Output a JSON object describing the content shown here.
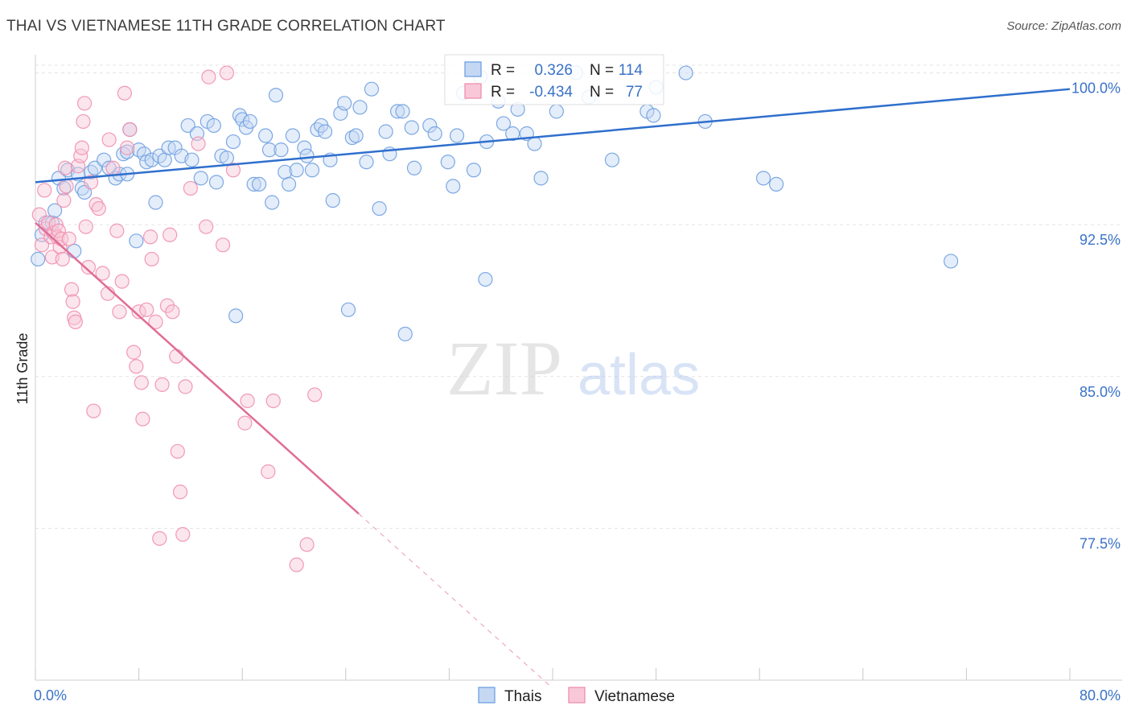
{
  "title": "THAI VS VIETNAMESE 11TH GRADE CORRELATION CHART",
  "source": "Source: ZipAtlas.com",
  "watermark": {
    "zip": "ZIP",
    "atlas": "atlas"
  },
  "colors": {
    "thai": "#6fa0e0",
    "thai_fill": "#c4d8f4",
    "thai_line": "#2f6fcd",
    "viet": "#ef8fae",
    "viet_fill": "#f8c8d8",
    "viet_line": "#e06d97",
    "axis_text": "#3a72c8",
    "grid": "#e3e3e3"
  },
  "stats": {
    "r_label": "R =",
    "n_label": "N =",
    "thai": {
      "r": "0.326",
      "n": "114"
    },
    "viet": {
      "r": "-0.434",
      "n": "77"
    }
  },
  "chart_data": {
    "type": "scatter",
    "title": "THAI VS VIETNAMESE 11TH GRADE CORRELATION CHART",
    "xlabel": "",
    "ylabel": "11th Grade",
    "xlim": [
      0,
      80
    ],
    "ylim": [
      70,
      100.5
    ],
    "x_tick_labels": {
      "min": "0.0%",
      "max": "80.0%"
    },
    "x_ticks": [
      0,
      8,
      16,
      24,
      32,
      40,
      48,
      56,
      64,
      72,
      80
    ],
    "y_ticks": [
      {
        "v": 100,
        "label": "100.0%"
      },
      {
        "v": 92.5,
        "label": "92.5%"
      },
      {
        "v": 85,
        "label": "85.0%"
      },
      {
        "v": 77.5,
        "label": "77.5%"
      }
    ],
    "legend": [
      "Thais",
      "Vietnamese"
    ],
    "series": [
      {
        "name": "Thais",
        "trend": {
          "x0": 0,
          "y0": 94.6,
          "x1": 80,
          "y1": 99.2,
          "solid_to": 80
        },
        "points": [
          [
            0.2,
            90.8
          ],
          [
            0.5,
            92.0
          ],
          [
            0.8,
            92.6
          ],
          [
            1.3,
            92.6
          ],
          [
            1.5,
            93.2
          ],
          [
            1.8,
            94.8
          ],
          [
            2.2,
            94.3
          ],
          [
            2.5,
            95.2
          ],
          [
            3.0,
            91.2
          ],
          [
            3.3,
            95.0
          ],
          [
            3.6,
            94.3
          ],
          [
            3.8,
            94.1
          ],
          [
            4.3,
            95.1
          ],
          [
            4.6,
            95.3
          ],
          [
            5.3,
            95.7
          ],
          [
            5.7,
            95.3
          ],
          [
            6.2,
            94.8
          ],
          [
            6.5,
            95.0
          ],
          [
            6.8,
            96.0
          ],
          [
            7.1,
            96.1
          ],
          [
            7.1,
            95.0
          ],
          [
            7.3,
            97.2
          ],
          [
            7.8,
            91.7
          ],
          [
            8.0,
            96.2
          ],
          [
            8.4,
            96.0
          ],
          [
            8.6,
            95.6
          ],
          [
            9.0,
            95.7
          ],
          [
            9.3,
            93.6
          ],
          [
            9.6,
            95.9
          ],
          [
            10.0,
            95.7
          ],
          [
            10.3,
            96.3
          ],
          [
            10.8,
            96.3
          ],
          [
            11.3,
            95.9
          ],
          [
            11.8,
            97.4
          ],
          [
            12.1,
            95.7
          ],
          [
            12.5,
            97.0
          ],
          [
            12.8,
            94.8
          ],
          [
            13.3,
            97.6
          ],
          [
            13.8,
            97.4
          ],
          [
            14.0,
            94.6
          ],
          [
            14.4,
            95.9
          ],
          [
            14.8,
            95.8
          ],
          [
            15.3,
            96.6
          ],
          [
            15.5,
            88.0
          ],
          [
            15.8,
            97.9
          ],
          [
            16.0,
            97.7
          ],
          [
            16.3,
            97.3
          ],
          [
            16.6,
            97.6
          ],
          [
            16.9,
            94.5
          ],
          [
            17.3,
            94.5
          ],
          [
            17.8,
            96.9
          ],
          [
            18.1,
            96.2
          ],
          [
            18.3,
            93.6
          ],
          [
            18.6,
            98.9
          ],
          [
            19.0,
            96.2
          ],
          [
            19.3,
            95.1
          ],
          [
            19.6,
            94.5
          ],
          [
            19.9,
            96.9
          ],
          [
            20.2,
            95.2
          ],
          [
            20.8,
            96.3
          ],
          [
            21.0,
            95.9
          ],
          [
            21.4,
            95.2
          ],
          [
            21.8,
            97.2
          ],
          [
            22.1,
            97.4
          ],
          [
            22.4,
            97.1
          ],
          [
            22.8,
            95.7
          ],
          [
            23.0,
            93.7
          ],
          [
            23.6,
            98.0
          ],
          [
            23.9,
            98.5
          ],
          [
            24.2,
            88.3
          ],
          [
            24.5,
            96.8
          ],
          [
            24.8,
            96.9
          ],
          [
            25.1,
            98.3
          ],
          [
            25.6,
            95.6
          ],
          [
            26.0,
            99.2
          ],
          [
            26.6,
            93.3
          ],
          [
            27.1,
            97.1
          ],
          [
            27.4,
            96.0
          ],
          [
            28.0,
            98.1
          ],
          [
            28.4,
            98.1
          ],
          [
            28.6,
            87.1
          ],
          [
            29.1,
            97.3
          ],
          [
            29.3,
            95.3
          ],
          [
            30.5,
            97.4
          ],
          [
            30.9,
            97.0
          ],
          [
            31.9,
            95.6
          ],
          [
            32.3,
            94.4
          ],
          [
            32.6,
            96.9
          ],
          [
            33.1,
            99.0
          ],
          [
            33.9,
            95.2
          ],
          [
            34.4,
            99.8
          ],
          [
            34.8,
            89.8
          ],
          [
            34.9,
            96.6
          ],
          [
            35.8,
            98.6
          ],
          [
            36.2,
            97.5
          ],
          [
            36.9,
            97.0
          ],
          [
            37.3,
            98.2
          ],
          [
            38.0,
            97.0
          ],
          [
            38.6,
            96.5
          ],
          [
            39.1,
            94.8
          ],
          [
            40.3,
            98.1
          ],
          [
            41.8,
            100.0
          ],
          [
            42.8,
            98.8
          ],
          [
            44.6,
            95.7
          ],
          [
            47.3,
            98.1
          ],
          [
            47.8,
            97.9
          ],
          [
            48.0,
            99.3
          ],
          [
            50.3,
            100.0
          ],
          [
            51.8,
            97.6
          ],
          [
            56.3,
            94.8
          ],
          [
            57.3,
            94.5
          ],
          [
            70.8,
            90.7
          ]
        ]
      },
      {
        "name": "Vietnamese",
        "trend": {
          "x0": 0,
          "y0": 92.6,
          "x1": 40,
          "y1": 69.6,
          "solid_to": 25
        },
        "points": [
          [
            0.3,
            93.0
          ],
          [
            0.5,
            91.5
          ],
          [
            0.7,
            94.2
          ],
          [
            0.8,
            92.3
          ],
          [
            1.0,
            92.6
          ],
          [
            1.2,
            91.9
          ],
          [
            1.3,
            90.9
          ],
          [
            1.4,
            92.1
          ],
          [
            1.6,
            92.5
          ],
          [
            1.7,
            91.9
          ],
          [
            1.8,
            92.2
          ],
          [
            1.9,
            91.4
          ],
          [
            2.0,
            91.8
          ],
          [
            2.1,
            90.8
          ],
          [
            2.2,
            93.7
          ],
          [
            2.3,
            95.3
          ],
          [
            2.4,
            94.4
          ],
          [
            2.6,
            91.8
          ],
          [
            2.8,
            89.3
          ],
          [
            2.9,
            88.7
          ],
          [
            3.0,
            87.9
          ],
          [
            3.1,
            87.7
          ],
          [
            3.3,
            95.4
          ],
          [
            3.5,
            95.9
          ],
          [
            3.6,
            96.3
          ],
          [
            3.7,
            97.6
          ],
          [
            3.8,
            98.5
          ],
          [
            3.9,
            92.4
          ],
          [
            4.1,
            90.4
          ],
          [
            4.3,
            94.6
          ],
          [
            4.5,
            83.3
          ],
          [
            4.7,
            93.5
          ],
          [
            4.9,
            93.3
          ],
          [
            5.2,
            90.1
          ],
          [
            5.6,
            89.1
          ],
          [
            5.7,
            96.7
          ],
          [
            6.0,
            95.3
          ],
          [
            6.3,
            92.2
          ],
          [
            6.5,
            88.2
          ],
          [
            6.7,
            89.7
          ],
          [
            6.9,
            99.0
          ],
          [
            7.1,
            96.3
          ],
          [
            7.3,
            97.2
          ],
          [
            7.6,
            86.2
          ],
          [
            7.8,
            85.5
          ],
          [
            8.0,
            88.2
          ],
          [
            8.2,
            84.7
          ],
          [
            8.3,
            82.9
          ],
          [
            8.6,
            88.3
          ],
          [
            8.9,
            91.9
          ],
          [
            9.0,
            90.8
          ],
          [
            9.3,
            87.7
          ],
          [
            9.6,
            77.0
          ],
          [
            9.8,
            84.6
          ],
          [
            10.2,
            88.5
          ],
          [
            10.4,
            92.0
          ],
          [
            10.6,
            88.2
          ],
          [
            10.9,
            86.0
          ],
          [
            11.0,
            81.3
          ],
          [
            11.2,
            79.3
          ],
          [
            11.4,
            77.2
          ],
          [
            11.6,
            84.5
          ],
          [
            12.0,
            94.3
          ],
          [
            12.6,
            96.5
          ],
          [
            13.2,
            92.4
          ],
          [
            13.4,
            99.8
          ],
          [
            14.5,
            91.5
          ],
          [
            14.8,
            100.0
          ],
          [
            15.3,
            95.2
          ],
          [
            16.2,
            82.7
          ],
          [
            16.4,
            83.8
          ],
          [
            18.0,
            80.3
          ],
          [
            18.4,
            83.8
          ],
          [
            20.2,
            75.7
          ],
          [
            21.0,
            76.7
          ],
          [
            21.6,
            84.1
          ]
        ]
      }
    ]
  }
}
